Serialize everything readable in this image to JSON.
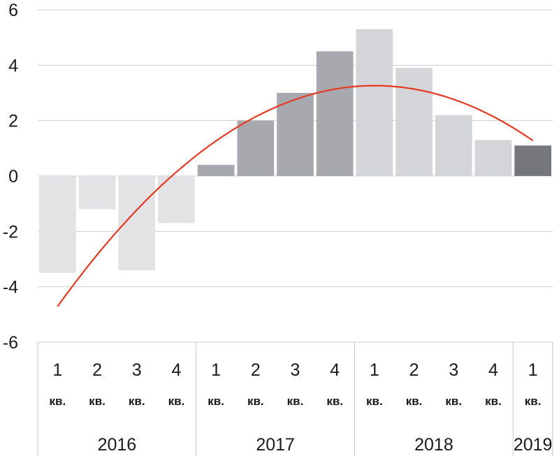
{
  "chart_data": {
    "type": "bar",
    "ylim": [
      -6,
      6
    ],
    "y_ticks": [
      "6",
      "4",
      "2",
      "0",
      "-2",
      "-4",
      "-6"
    ],
    "grid": true,
    "quarter_suffix": "кв.",
    "categories": [
      {
        "quarter": "1",
        "year": "2016"
      },
      {
        "quarter": "2",
        "year": "2016"
      },
      {
        "quarter": "3",
        "year": "2016"
      },
      {
        "quarter": "4",
        "year": "2016"
      },
      {
        "quarter": "1",
        "year": "2017"
      },
      {
        "quarter": "2",
        "year": "2017"
      },
      {
        "quarter": "3",
        "year": "2017"
      },
      {
        "quarter": "4",
        "year": "2017"
      },
      {
        "quarter": "1",
        "year": "2018"
      },
      {
        "quarter": "2",
        "year": "2018"
      },
      {
        "quarter": "3",
        "year": "2018"
      },
      {
        "quarter": "4",
        "year": "2018"
      },
      {
        "quarter": "1",
        "year": "2019"
      }
    ],
    "values": [
      -3.5,
      -1.2,
      -3.4,
      -1.7,
      0.4,
      2.0,
      3.0,
      4.5,
      5.3,
      3.9,
      2.2,
      1.3,
      1.1
    ],
    "years": [
      "2016",
      "2017",
      "2018",
      "2019"
    ],
    "trend": {
      "type": "quadratic",
      "color": "#e53a22",
      "values": [
        -4.65,
        -2.85,
        -1.3,
        0.1,
        1.25,
        2.15,
        2.8,
        3.2,
        3.3,
        3.15,
        2.7,
        2.05,
        1.35
      ]
    },
    "bar_colors": {
      "2016": "#e3e3e5",
      "2017": "#a8a9ae",
      "2018": "#d4d5d8",
      "2019": "#76777b"
    },
    "colors": {
      "grid": "#cfcfcf",
      "separator": "#c6c6c6"
    }
  }
}
